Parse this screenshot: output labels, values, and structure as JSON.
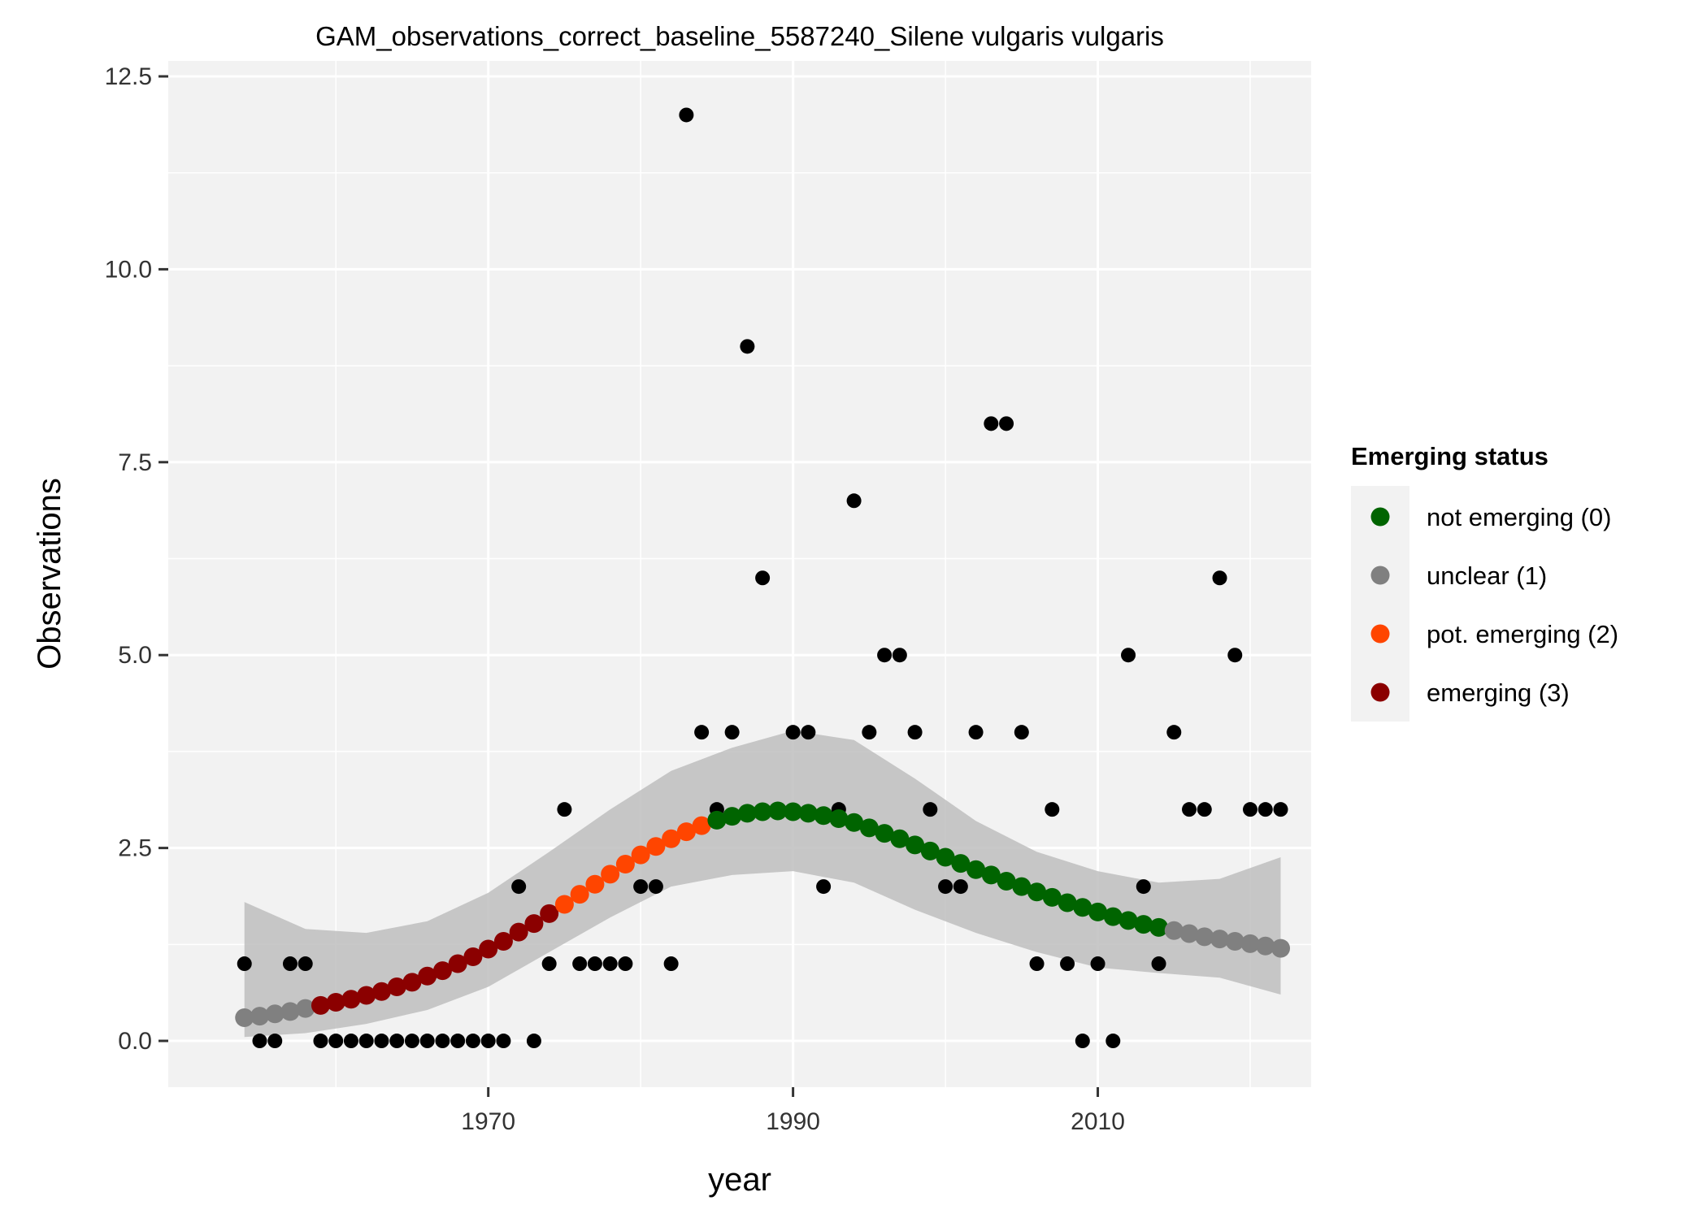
{
  "chart_data": {
    "type": "scatter",
    "title": "GAM_observations_correct_baseline_5587240_Silene vulgaris vulgaris",
    "xlabel": "year",
    "ylabel": "Observations",
    "x_ticks": [
      1970,
      1990,
      2010
    ],
    "y_ticks": [
      "0.0",
      "2.5",
      "5.0",
      "7.5",
      "10.0",
      "12.5"
    ],
    "xlim": [
      1949,
      2024
    ],
    "ylim": [
      -0.6,
      12.7
    ],
    "grid": true,
    "legend": {
      "title": "Emerging status",
      "placement": "right",
      "entries": [
        {
          "label": "not emerging (0)",
          "color": "#006400"
        },
        {
          "label": "unclear (1)",
          "color": "#808080"
        },
        {
          "label": "pot. emerging (2)",
          "color": "#FF4500"
        },
        {
          "label": "emerging (3)",
          "color": "#8B0000"
        }
      ]
    },
    "colors": {
      "panel": "#F2F2F2",
      "grid": "#FFFFFF",
      "ribbon": "#BEBEBE",
      "observation_point": "#000000"
    },
    "observations": {
      "x": [
        1954,
        1955,
        1956,
        1957,
        1958,
        1959,
        1960,
        1961,
        1962,
        1963,
        1964,
        1965,
        1966,
        1967,
        1968,
        1969,
        1970,
        1971,
        1972,
        1973,
        1974,
        1975,
        1976,
        1977,
        1978,
        1979,
        1980,
        1981,
        1982,
        1983,
        1984,
        1985,
        1986,
        1987,
        1988,
        1990,
        1991,
        1992,
        1993,
        1994,
        1995,
        1996,
        1997,
        1998,
        1999,
        2000,
        2001,
        2002,
        2003,
        2004,
        2005,
        2006,
        2007,
        2008,
        2009,
        2010,
        2011,
        2012,
        2013,
        2014,
        2015,
        2016,
        2017,
        2018,
        2019,
        2020,
        2021,
        2022
      ],
      "y": [
        1,
        0,
        0,
        1,
        1,
        0,
        0,
        0,
        0,
        0,
        0,
        0,
        0,
        0,
        0,
        0,
        0,
        0,
        2,
        0,
        1,
        3,
        1,
        1,
        1,
        1,
        2,
        2,
        1,
        12,
        4,
        3,
        4,
        9,
        6,
        4,
        4,
        2,
        3,
        7,
        4,
        5,
        5,
        4,
        3,
        2,
        2,
        4,
        8,
        8,
        4,
        1,
        3,
        1,
        0,
        1,
        0,
        5,
        2,
        1,
        4,
        3,
        3,
        6,
        5,
        3,
        3,
        3
      ]
    },
    "gam_fit": {
      "x": [
        1954,
        1955,
        1956,
        1957,
        1958,
        1959,
        1960,
        1961,
        1962,
        1963,
        1964,
        1965,
        1966,
        1967,
        1968,
        1969,
        1970,
        1971,
        1972,
        1973,
        1974,
        1975,
        1976,
        1977,
        1978,
        1979,
        1980,
        1981,
        1982,
        1983,
        1984,
        1985,
        1986,
        1987,
        1988,
        1989,
        1990,
        1991,
        1992,
        1993,
        1994,
        1995,
        1996,
        1997,
        1998,
        1999,
        2000,
        2001,
        2002,
        2003,
        2004,
        2005,
        2006,
        2007,
        2008,
        2009,
        2010,
        2011,
        2012,
        2013,
        2014,
        2015,
        2016,
        2017,
        2018,
        2019,
        2020,
        2021,
        2022
      ],
      "y": [
        0.3,
        0.32,
        0.35,
        0.38,
        0.42,
        0.46,
        0.5,
        0.54,
        0.59,
        0.64,
        0.7,
        0.76,
        0.84,
        0.91,
        1.0,
        1.09,
        1.19,
        1.29,
        1.41,
        1.52,
        1.65,
        1.77,
        1.9,
        2.03,
        2.16,
        2.29,
        2.41,
        2.52,
        2.62,
        2.71,
        2.79,
        2.86,
        2.91,
        2.95,
        2.97,
        2.98,
        2.97,
        2.95,
        2.92,
        2.88,
        2.83,
        2.76,
        2.69,
        2.62,
        2.54,
        2.46,
        2.38,
        2.3,
        2.22,
        2.15,
        2.07,
        2.0,
        1.93,
        1.86,
        1.79,
        1.73,
        1.67,
        1.61,
        1.56,
        1.51,
        1.47,
        1.43,
        1.39,
        1.35,
        1.32,
        1.29,
        1.26,
        1.23,
        1.2
      ],
      "status": [
        1,
        1,
        1,
        1,
        1,
        3,
        3,
        3,
        3,
        3,
        3,
        3,
        3,
        3,
        3,
        3,
        3,
        3,
        3,
        3,
        3,
        2,
        2,
        2,
        2,
        2,
        2,
        2,
        2,
        2,
        2,
        0,
        0,
        0,
        0,
        0,
        0,
        0,
        0,
        0,
        0,
        0,
        0,
        0,
        0,
        0,
        0,
        0,
        0,
        0,
        0,
        0,
        0,
        0,
        0,
        0,
        0,
        0,
        0,
        0,
        0,
        1,
        1,
        1,
        1,
        1,
        1,
        1,
        1
      ]
    },
    "confidence_band": {
      "x": [
        1954,
        1958,
        1962,
        1966,
        1970,
        1974,
        1978,
        1982,
        1986,
        1990,
        1994,
        1998,
        2002,
        2006,
        2010,
        2014,
        2018,
        2022
      ],
      "lower": [
        0.05,
        0.1,
        0.22,
        0.4,
        0.7,
        1.15,
        1.6,
        2.0,
        2.15,
        2.2,
        2.05,
        1.7,
        1.4,
        1.15,
        0.95,
        0.88,
        0.82,
        0.6
      ],
      "upper": [
        1.8,
        1.45,
        1.4,
        1.55,
        1.92,
        2.45,
        3.0,
        3.5,
        3.8,
        4.02,
        3.9,
        3.4,
        2.85,
        2.45,
        2.2,
        2.05,
        2.1,
        2.38
      ]
    }
  }
}
